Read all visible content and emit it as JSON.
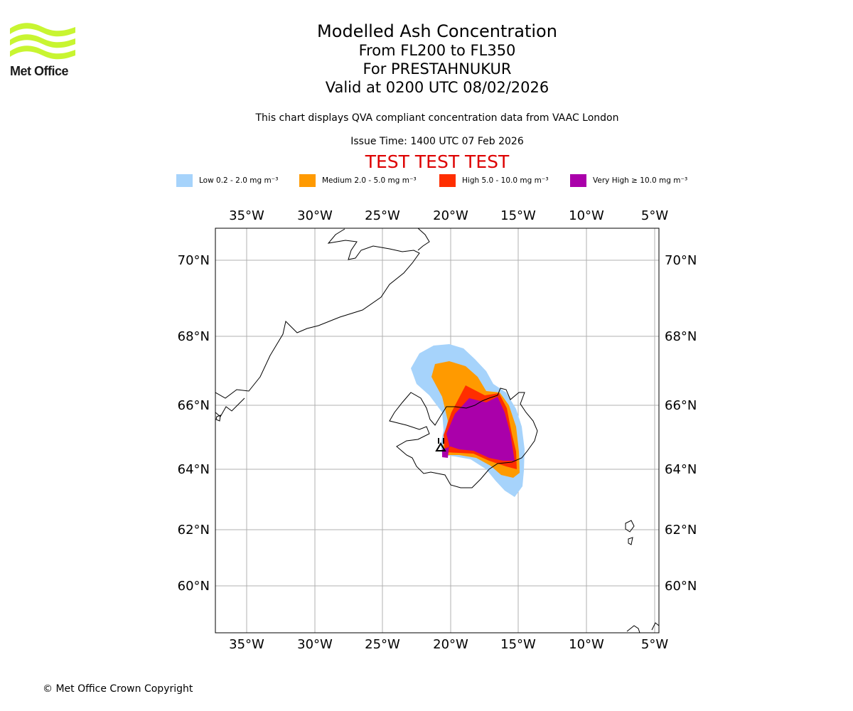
{
  "logo": {
    "name": "Met Office",
    "accent": "#c8f531"
  },
  "title": "Modelled Ash Concentration",
  "subtitle_lines": [
    "From FL200 to FL350",
    "For PRESTAHNUKUR",
    "Valid at 0200 UTC 08/02/2026"
  ],
  "description": "This chart displays QVA compliant concentration data from VAAC London",
  "issue_time": "Issue Time: 1400 UTC 07 Feb 2026",
  "test_banner": "TEST TEST TEST",
  "legend": [
    {
      "label": "Low 0.2 - 2.0 mg m⁻³",
      "color": "#a6d3fb"
    },
    {
      "label": "Medium 2.0 - 5.0 mg m⁻³",
      "color": "#ff9a00"
    },
    {
      "label": "High 5.0 - 10.0 mg m⁻³",
      "color": "#ff2e00"
    },
    {
      "label": "Very High  ≥  10.0 mg m⁻³",
      "color": "#aa00aa"
    }
  ],
  "map": {
    "region": "Iceland and Greenland east coast",
    "longitude_labels": [
      "35°W",
      "30°W",
      "25°W",
      "20°W",
      "15°W",
      "10°W",
      "5°W"
    ],
    "latitude_labels": [
      "70°N",
      "68°N",
      "66°N",
      "64°N",
      "62°N",
      "60°N"
    ],
    "grid": true,
    "volcano": "PRESTAHNUKUR"
  },
  "copyright": "© Met Office Crown Copyright"
}
